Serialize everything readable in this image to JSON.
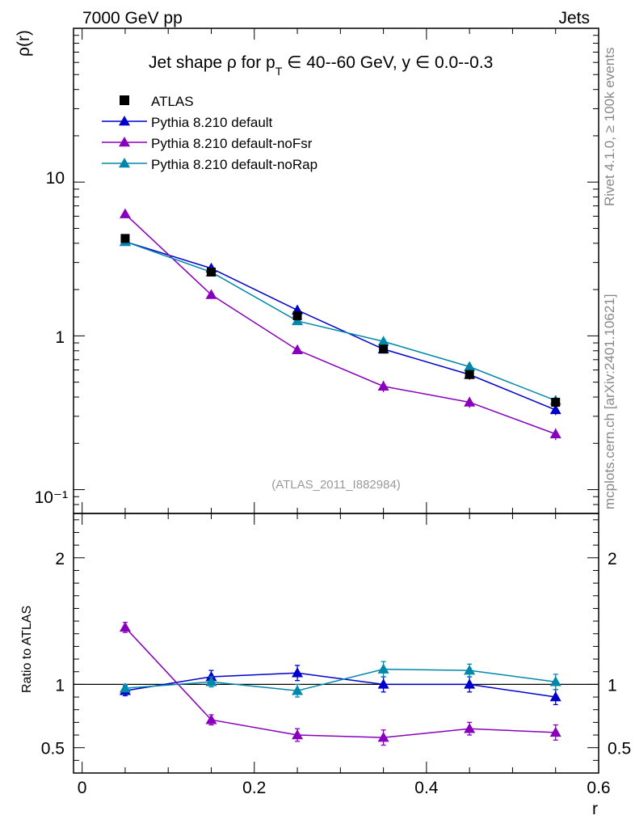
{
  "header": {
    "left": "7000 GeV pp",
    "right": "Jets"
  },
  "side_labels": {
    "rivet": "Rivet 4.1.0, ≥ 100k events",
    "mcplots": "mcplots.cern.ch [arXiv:2401.10621]"
  },
  "chart_data": {
    "type": "line",
    "title": "Jet shape ρ for p_T ∈ 40--60 GeV, y ∈ 0.0--0.3",
    "title_parts": {
      "main": "Jet shape ρ for p",
      "sub": "T",
      "rest": " ∈ 40--60 GeV, y ∈ 0.0--0.3"
    },
    "analysis_label": "(ATLAS_2011_I882984)",
    "xlabel": "r",
    "ylabel": "ρ(r)",
    "ratio_ylabel": "Ratio to ATLAS",
    "xlim": [
      -0.01,
      0.6
    ],
    "ylim": [
      0.07,
      100
    ],
    "yscale": "log",
    "ratio_ylim": [
      0.3,
      2.35
    ],
    "x_ticks": [
      0,
      0.2,
      0.4,
      0.6
    ],
    "x_tick_labels": [
      "0",
      "0.2",
      "0.4",
      "0.6"
    ],
    "y_tick_labels": [
      "10⁻¹",
      "1",
      "10"
    ],
    "ratio_tick_values": [
      0.5,
      1,
      2
    ],
    "ratio_tick_labels": [
      "0.5",
      "1",
      "2"
    ],
    "x": [
      0.05,
      0.15,
      0.25,
      0.35,
      0.45,
      0.55
    ],
    "data": {
      "name": "ATLAS",
      "color": "#000000",
      "values": [
        4.3,
        2.6,
        1.35,
        0.82,
        0.56,
        0.37
      ],
      "errors": [
        0.2,
        0.12,
        0.07,
        0.05,
        0.04,
        0.03
      ]
    },
    "series": [
      {
        "name": "Pythia 8.210 default",
        "color": "#0000cc",
        "values": [
          4.1,
          2.75,
          1.47,
          0.82,
          0.56,
          0.33
        ],
        "errors": [
          0.15,
          0.15,
          0.1,
          0.05,
          0.04,
          0.025
        ],
        "ratio": [
          0.95,
          1.06,
          1.09,
          1.0,
          1.0,
          0.9
        ],
        "ratio_errors": [
          0.04,
          0.05,
          0.06,
          0.06,
          0.06,
          0.06
        ]
      },
      {
        "name": "Pythia 8.210 default-noFsr",
        "color": "#8800bb",
        "values": [
          6.2,
          1.85,
          0.81,
          0.47,
          0.37,
          0.23
        ],
        "errors": [
          0.2,
          0.08,
          0.05,
          0.04,
          0.03,
          0.02
        ],
        "ratio": [
          1.45,
          0.72,
          0.6,
          0.58,
          0.65,
          0.62
        ],
        "ratio_errors": [
          0.04,
          0.04,
          0.05,
          0.06,
          0.05,
          0.06
        ]
      },
      {
        "name": "Pythia 8.210 default-noRap",
        "color": "#0088aa",
        "values": [
          4.1,
          2.6,
          1.25,
          0.92,
          0.63,
          0.38
        ],
        "errors": [
          0.15,
          0.15,
          0.07,
          0.05,
          0.04,
          0.03
        ],
        "ratio": [
          0.97,
          1.02,
          0.95,
          1.12,
          1.11,
          1.02
        ],
        "ratio_errors": [
          0.03,
          0.04,
          0.05,
          0.06,
          0.05,
          0.06
        ]
      }
    ]
  }
}
